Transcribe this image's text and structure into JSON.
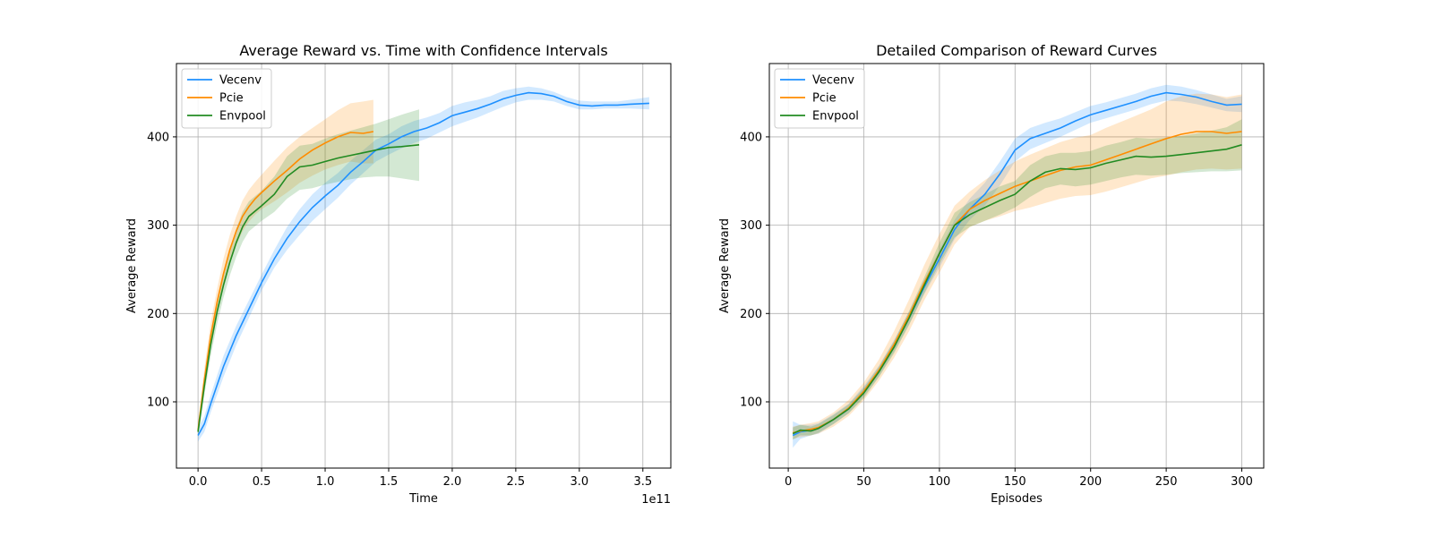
{
  "colors": {
    "vecenv": "#1e90ff",
    "pcie": "#ff8c00",
    "envpool": "#228b22"
  },
  "chart_data": [
    {
      "type": "line",
      "title": "Average Reward vs. Time with Confidence Intervals",
      "xlabel": "Time",
      "ylabel": "Average Reward",
      "x_offset_text": "1e11",
      "xlim": [
        -0.17,
        3.72
      ],
      "ylim": [
        25,
        483
      ],
      "xticks": [
        0.0,
        0.5,
        1.0,
        1.5,
        2.0,
        2.5,
        3.0,
        3.5
      ],
      "xtick_labels": [
        "0.0",
        "0.5",
        "1.0",
        "1.5",
        "2.0",
        "2.5",
        "3.0",
        "3.5"
      ],
      "yticks": [
        100,
        200,
        300,
        400
      ],
      "ytick_labels": [
        "100",
        "200",
        "300",
        "400"
      ],
      "grid": true,
      "legend": "top-left",
      "series": [
        {
          "name": "Vecenv",
          "color_key": "vecenv",
          "x": [
            0.0,
            0.05,
            0.1,
            0.2,
            0.3,
            0.4,
            0.5,
            0.6,
            0.7,
            0.8,
            0.9,
            1.0,
            1.1,
            1.2,
            1.3,
            1.4,
            1.5,
            1.6,
            1.7,
            1.8,
            1.9,
            2.0,
            2.1,
            2.2,
            2.3,
            2.4,
            2.5,
            2.6,
            2.7,
            2.8,
            2.9,
            3.0,
            3.1,
            3.2,
            3.3,
            3.4,
            3.55
          ],
          "y": [
            62,
            75,
            98,
            140,
            175,
            205,
            235,
            262,
            285,
            304,
            320,
            333,
            345,
            360,
            372,
            385,
            392,
            400,
            406,
            410,
            416,
            424,
            428,
            432,
            437,
            443,
            447,
            450,
            449,
            446,
            440,
            436,
            435,
            436,
            436,
            437,
            438
          ],
          "lower": [
            55,
            66,
            88,
            128,
            164,
            195,
            226,
            252,
            272,
            289,
            305,
            318,
            331,
            346,
            359,
            372,
            380,
            387,
            393,
            398,
            405,
            412,
            417,
            422,
            428,
            434,
            439,
            442,
            442,
            440,
            435,
            431,
            431,
            432,
            432,
            432,
            431
          ],
          "upper": [
            70,
            84,
            108,
            152,
            186,
            215,
            244,
            272,
            298,
            318,
            335,
            348,
            359,
            373,
            385,
            397,
            403,
            412,
            418,
            422,
            427,
            435,
            439,
            442,
            446,
            452,
            455,
            457,
            455,
            451,
            445,
            441,
            440,
            440,
            440,
            442,
            445
          ]
        },
        {
          "name": "Pcie",
          "color_key": "pcie",
          "x": [
            0.0,
            0.05,
            0.1,
            0.15,
            0.2,
            0.25,
            0.3,
            0.35,
            0.4,
            0.45,
            0.5,
            0.6,
            0.7,
            0.8,
            0.9,
            1.0,
            1.1,
            1.2,
            1.3,
            1.38
          ],
          "y": [
            68,
            125,
            175,
            213,
            245,
            272,
            293,
            310,
            321,
            330,
            337,
            350,
            362,
            375,
            385,
            393,
            400,
            405,
            404,
            406
          ],
          "lower": [
            62,
            112,
            160,
            198,
            229,
            256,
            277,
            293,
            304,
            312,
            318,
            327,
            337,
            348,
            356,
            363,
            368,
            372,
            370,
            370
          ],
          "upper": [
            74,
            138,
            190,
            228,
            262,
            289,
            310,
            328,
            340,
            349,
            357,
            373,
            388,
            400,
            410,
            420,
            430,
            438,
            440,
            442
          ]
        },
        {
          "name": "Envpool",
          "color_key": "envpool",
          "x": [
            0.0,
            0.05,
            0.1,
            0.15,
            0.2,
            0.25,
            0.3,
            0.35,
            0.4,
            0.45,
            0.5,
            0.6,
            0.7,
            0.8,
            0.9,
            1.0,
            1.1,
            1.2,
            1.3,
            1.4,
            1.5,
            1.6,
            1.74
          ],
          "y": [
            66,
            118,
            165,
            202,
            232,
            258,
            280,
            298,
            310,
            316,
            322,
            335,
            355,
            366,
            368,
            372,
            376,
            379,
            382,
            385,
            388,
            389,
            391
          ],
          "lower": [
            60,
            108,
            152,
            188,
            218,
            243,
            264,
            281,
            293,
            299,
            305,
            315,
            330,
            340,
            342,
            346,
            349,
            352,
            354,
            355,
            355,
            353,
            350
          ],
          "upper": [
            72,
            128,
            178,
            216,
            246,
            273,
            296,
            315,
            327,
            333,
            339,
            355,
            378,
            390,
            392,
            398,
            403,
            407,
            411,
            415,
            420,
            425,
            431
          ]
        }
      ]
    },
    {
      "type": "line",
      "title": "Detailed Comparison of Reward Curves",
      "xlabel": "Episodes",
      "ylabel": "Average Reward",
      "xlim": [
        -12.5,
        314.5
      ],
      "ylim": [
        25,
        483
      ],
      "xticks": [
        0,
        50,
        100,
        150,
        200,
        250,
        300
      ],
      "xtick_labels": [
        "0",
        "50",
        "100",
        "150",
        "200",
        "250",
        "300"
      ],
      "yticks": [
        100,
        200,
        300,
        400
      ],
      "ytick_labels": [
        "100",
        "200",
        "300",
        "400"
      ],
      "grid": true,
      "legend": "top-left",
      "series": [
        {
          "name": "Vecenv",
          "color_key": "vecenv",
          "x": [
            3,
            8,
            15,
            20,
            30,
            40,
            50,
            60,
            70,
            80,
            90,
            100,
            110,
            120,
            130,
            140,
            150,
            160,
            170,
            180,
            190,
            200,
            210,
            220,
            230,
            240,
            250,
            260,
            270,
            280,
            290,
            300
          ],
          "y": [
            62,
            66,
            68,
            70,
            80,
            92,
            112,
            135,
            163,
            195,
            230,
            262,
            295,
            318,
            335,
            358,
            385,
            398,
            404,
            410,
            418,
            425,
            430,
            435,
            440,
            446,
            450,
            448,
            445,
            440,
            436,
            437
          ],
          "lower": [
            48,
            58,
            62,
            64,
            75,
            87,
            106,
            129,
            157,
            188,
            222,
            252,
            284,
            306,
            322,
            345,
            372,
            386,
            393,
            400,
            408,
            416,
            421,
            426,
            431,
            437,
            441,
            440,
            437,
            433,
            429,
            428
          ],
          "upper": [
            78,
            74,
            74,
            76,
            86,
            98,
            118,
            141,
            170,
            202,
            238,
            272,
            306,
            330,
            348,
            372,
            398,
            410,
            416,
            421,
            428,
            435,
            439,
            444,
            449,
            455,
            459,
            457,
            453,
            448,
            443,
            446
          ]
        },
        {
          "name": "Pcie",
          "color_key": "pcie",
          "x": [
            3,
            8,
            15,
            20,
            30,
            40,
            50,
            60,
            70,
            80,
            90,
            100,
            110,
            120,
            130,
            140,
            150,
            160,
            170,
            180,
            190,
            200,
            210,
            220,
            230,
            240,
            250,
            260,
            270,
            280,
            290,
            300
          ],
          "y": [
            65,
            67,
            69,
            71,
            80,
            93,
            112,
            136,
            165,
            198,
            235,
            268,
            300,
            318,
            328,
            336,
            344,
            350,
            356,
            362,
            366,
            368,
            374,
            380,
            386,
            392,
            398,
            403,
            406,
            406,
            404,
            406
          ],
          "lower": [
            58,
            60,
            62,
            64,
            72,
            84,
            102,
            124,
            150,
            180,
            215,
            246,
            278,
            298,
            305,
            310,
            316,
            320,
            325,
            330,
            333,
            334,
            338,
            343,
            348,
            353,
            356,
            360,
            363,
            364,
            363,
            364
          ],
          "upper": [
            72,
            74,
            76,
            78,
            88,
            102,
            122,
            148,
            180,
            216,
            255,
            290,
            322,
            338,
            351,
            362,
            372,
            380,
            387,
            394,
            399,
            402,
            410,
            417,
            424,
            431,
            440,
            446,
            449,
            448,
            445,
            448
          ]
        },
        {
          "name": "Envpool",
          "color_key": "envpool",
          "x": [
            3,
            8,
            15,
            20,
            30,
            40,
            50,
            60,
            70,
            80,
            90,
            100,
            110,
            120,
            130,
            140,
            150,
            160,
            170,
            180,
            190,
            200,
            210,
            220,
            230,
            240,
            250,
            260,
            270,
            280,
            290,
            300
          ],
          "y": [
            64,
            68,
            67,
            70,
            80,
            92,
            110,
            134,
            162,
            195,
            232,
            268,
            300,
            312,
            320,
            328,
            335,
            350,
            360,
            364,
            363,
            365,
            370,
            374,
            378,
            377,
            378,
            380,
            382,
            384,
            386,
            391
          ],
          "lower": [
            57,
            62,
            62,
            65,
            75,
            87,
            104,
            128,
            155,
            187,
            223,
            256,
            286,
            298,
            305,
            312,
            320,
            332,
            342,
            346,
            344,
            346,
            350,
            354,
            357,
            356,
            357,
            359,
            360,
            361,
            361,
            362
          ],
          "upper": [
            71,
            74,
            72,
            75,
            85,
            97,
            116,
            140,
            169,
            203,
            241,
            280,
            314,
            326,
            335,
            344,
            350,
            368,
            378,
            382,
            382,
            384,
            390,
            394,
            399,
            398,
            399,
            401,
            404,
            407,
            411,
            420
          ]
        }
      ]
    }
  ]
}
